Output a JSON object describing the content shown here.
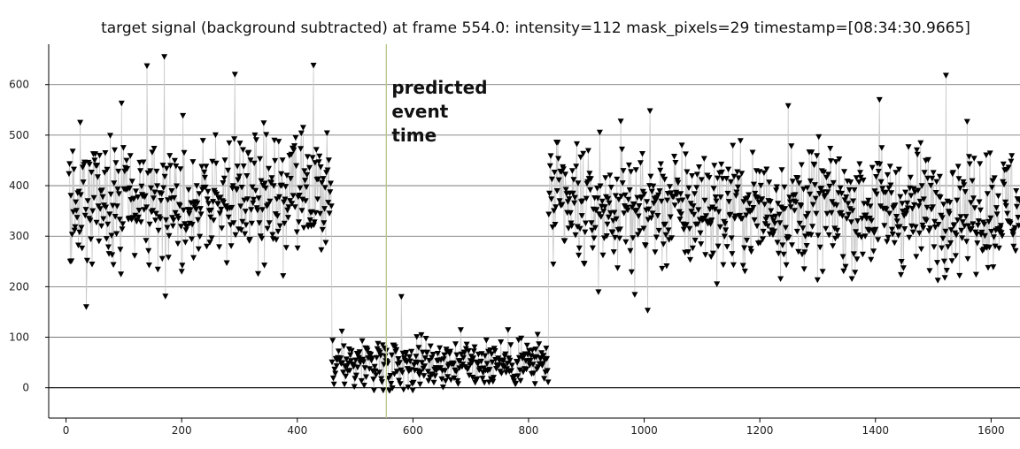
{
  "chart_data": {
    "type": "scatter",
    "title": "target signal (background subtracted) at frame 554.0: intensity=112 mask_pixels=29 timestamp=[08:34:30.9665]",
    "xlabel": "",
    "ylabel": "",
    "xlim": [
      -30,
      1650
    ],
    "ylim": [
      -60,
      680
    ],
    "x_ticks": [
      0,
      200,
      400,
      600,
      800,
      1000,
      1200,
      1400,
      1600
    ],
    "y_ticks": [
      0,
      100,
      200,
      300,
      400,
      500,
      600
    ],
    "grid": "horizontal",
    "marker": "down-triangle",
    "connected_by_line": true,
    "line_color": "#c8c8c8",
    "marker_color": "#000000",
    "grid_color": "#666666",
    "event_line": {
      "x": 554,
      "color": "#b5c78a",
      "label": "predicted\nevent\ntime"
    },
    "series": [
      {
        "segments": [
          {
            "x_start": 5,
            "x_end": 460,
            "count": 420,
            "mean": 370,
            "spread": 70,
            "min": 160,
            "max": 655
          },
          {
            "x_start": 460,
            "x_end": 835,
            "count": 330,
            "mean": 50,
            "spread": 28,
            "min": -25,
            "max": 185
          },
          {
            "x_start": 835,
            "x_end": 1650,
            "count": 740,
            "mean": 355,
            "spread": 65,
            "min": 150,
            "max": 620
          }
        ],
        "outliers": [
          {
            "x": 140,
            "y": 637
          },
          {
            "x": 170,
            "y": 655
          },
          {
            "x": 292,
            "y": 620
          },
          {
            "x": 428,
            "y": 638
          },
          {
            "x": 1522,
            "y": 618
          },
          {
            "x": 1249,
            "y": 558
          },
          {
            "x": 1407,
            "y": 570
          },
          {
            "x": 1010,
            "y": 548
          },
          {
            "x": 580,
            "y": 180
          },
          {
            "x": 35,
            "y": 160
          },
          {
            "x": 1006,
            "y": 153
          }
        ]
      }
    ]
  }
}
